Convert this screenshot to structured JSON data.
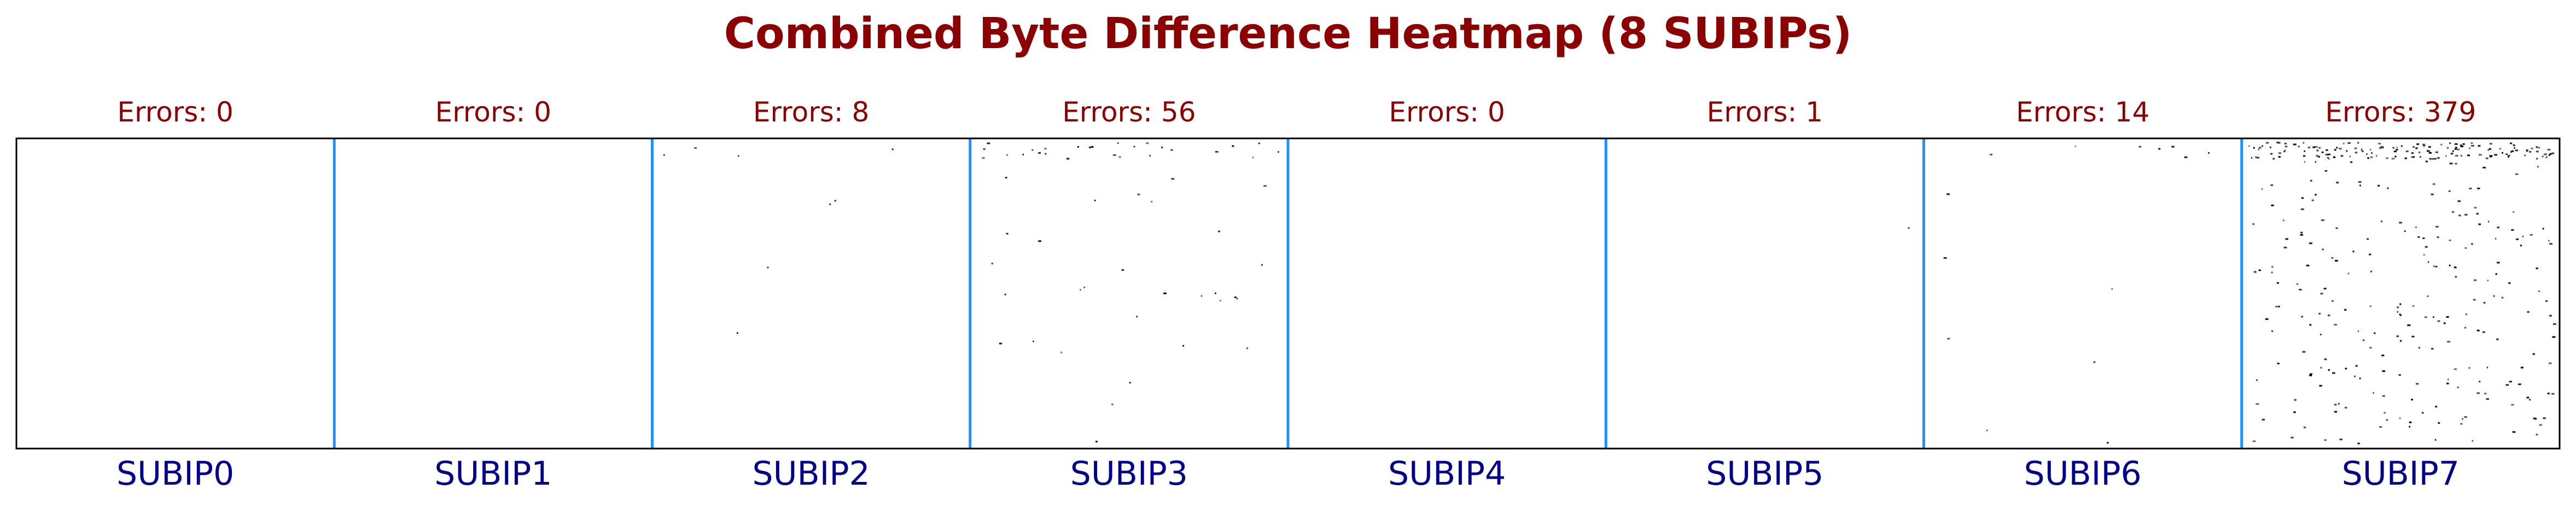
{
  "chart_data": {
    "type": "heatmap",
    "title": "Combined Byte Difference Heatmap (8 SUBIPs)",
    "colors": {
      "title": "#8b0000",
      "error_label": "#8b0000",
      "subip_label": "#00008b",
      "separator": "#1e90ff",
      "axes_border": "#000000",
      "error_pixel": "#000000",
      "background": "#ffffff"
    },
    "panels": [
      {
        "label": "SUBIP0",
        "error_text": "Errors: 0",
        "errors": 0
      },
      {
        "label": "SUBIP1",
        "error_text": "Errors: 0",
        "errors": 0
      },
      {
        "label": "SUBIP2",
        "error_text": "Errors: 8",
        "errors": 8
      },
      {
        "label": "SUBIP3",
        "error_text": "Errors: 56",
        "errors": 56
      },
      {
        "label": "SUBIP4",
        "error_text": "Errors: 0",
        "errors": 0
      },
      {
        "label": "SUBIP5",
        "error_text": "Errors: 1",
        "errors": 1
      },
      {
        "label": "SUBIP6",
        "error_text": "Errors: 14",
        "errors": 14
      },
      {
        "label": "SUBIP7",
        "error_text": "Errors: 379",
        "errors": 379
      }
    ]
  }
}
